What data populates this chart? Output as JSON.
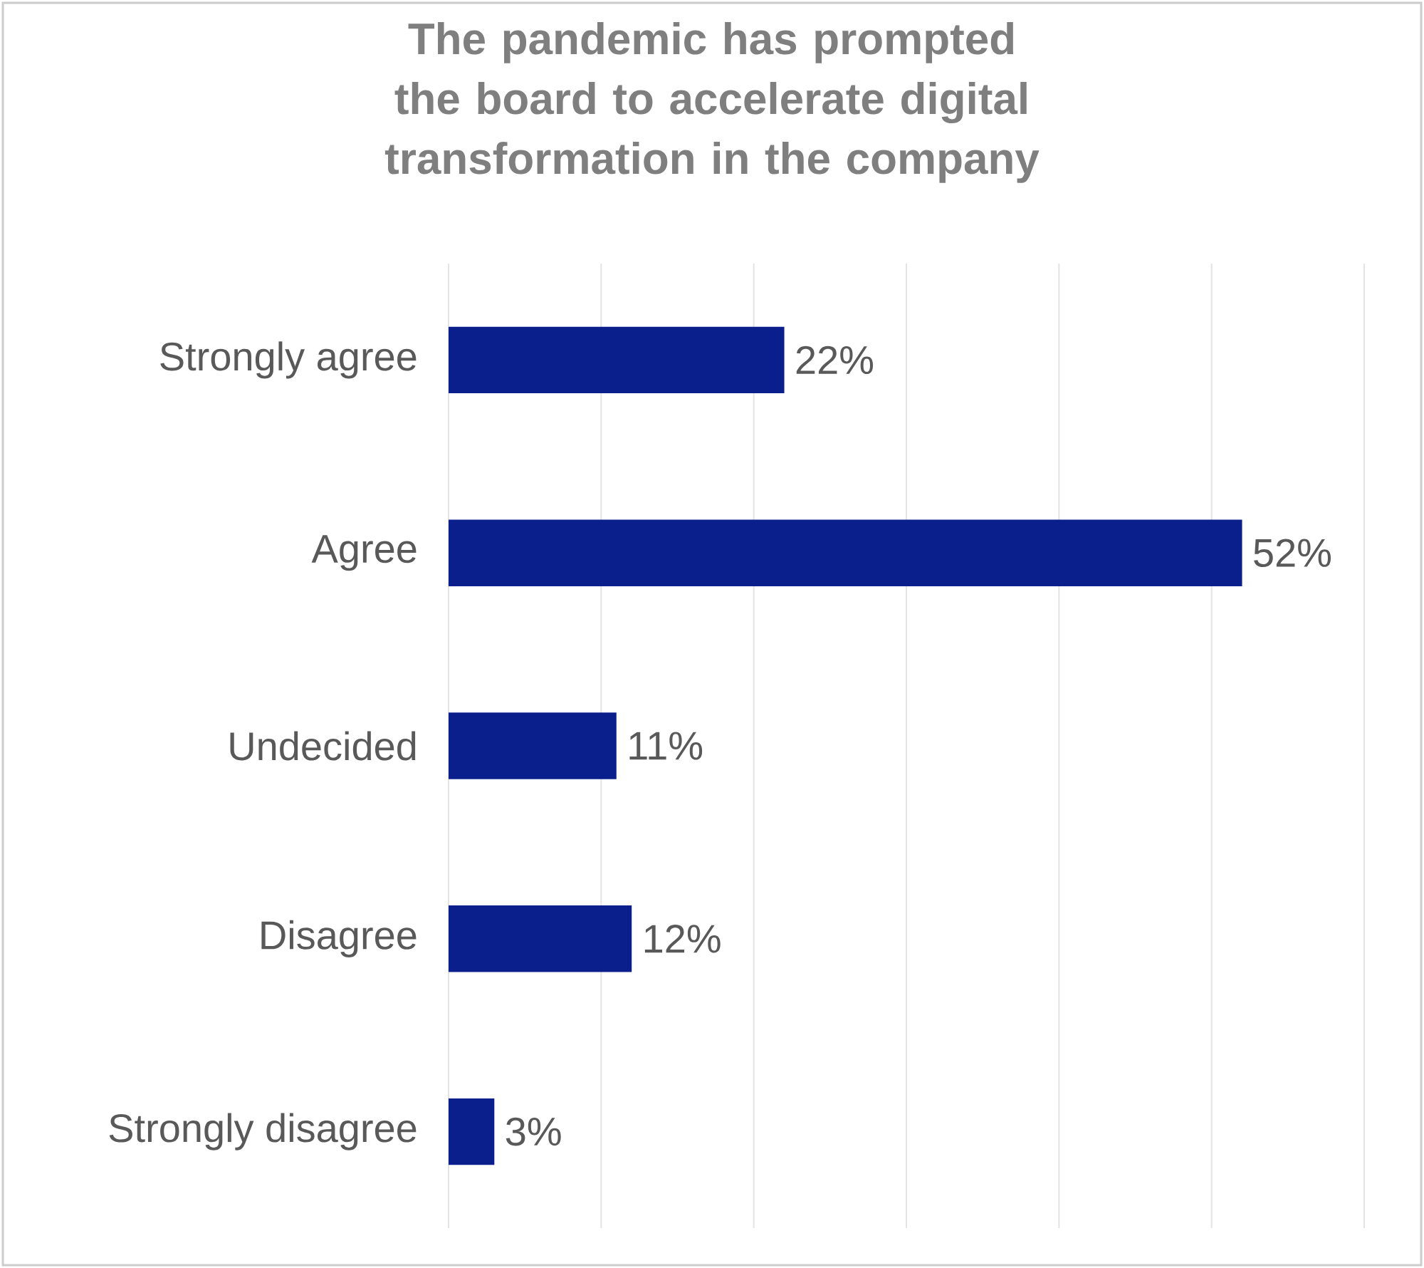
{
  "chart_data": {
    "type": "bar",
    "orientation": "horizontal",
    "title": "The pandemic has prompted the board to accelerate digital transformation in the company",
    "categories": [
      "Strongly agree",
      "Agree",
      "Undecided",
      "Disagree",
      "Strongly disagree"
    ],
    "values": [
      22,
      52,
      11,
      12,
      3
    ],
    "value_labels": [
      "22%",
      "52%",
      "11%",
      "12%",
      "3%"
    ],
    "color": "#0b1f8c",
    "xlim": [
      0,
      60
    ],
    "xticks": [
      {
        "value": 0,
        "label": null
      },
      {
        "value": 10,
        "label": null
      },
      {
        "value": 20,
        "label": null
      },
      {
        "value": 30,
        "label": null
      },
      {
        "value": 40,
        "label": null
      },
      {
        "value": 50,
        "label": null
      },
      {
        "value": 60,
        "label": null
      }
    ],
    "grid": "x",
    "tick_labels": "y"
  }
}
